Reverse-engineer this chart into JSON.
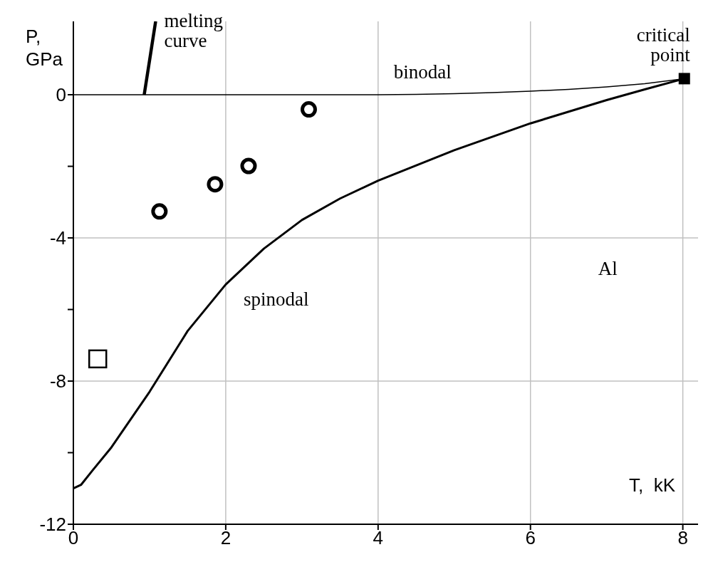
{
  "chart_data": {
    "type": "line",
    "xlabel": "T,  kK",
    "ylabel": "P, GPa",
    "xlim": [
      0,
      8.2
    ],
    "ylim": [
      -12,
      2.05
    ],
    "xticks": [
      0,
      2,
      4,
      6,
      8
    ],
    "yticks": [
      0,
      {
        "value": -2,
        "label": null
      },
      -4,
      {
        "value": -6,
        "label": null
      },
      -8,
      {
        "value": -10,
        "label": null
      },
      -12
    ],
    "grid": true,
    "series": [
      {
        "color": "#000000",
        "marker": "none",
        "x": [
          0,
          1,
          2,
          3,
          4,
          4.5,
          5,
          5.5,
          6,
          6.5,
          7,
          7.5,
          8.02
        ],
        "values": [
          0,
          0,
          0,
          0,
          0,
          0.01,
          0.03,
          0.06,
          0.1,
          0.15,
          0.22,
          0.31,
          0.45
        ]
      },
      {
        "color": "#000000",
        "marker": "none",
        "x": [
          0,
          0.1,
          0.25,
          0.5,
          1,
          1.5,
          2,
          2.5,
          3,
          3.5,
          4,
          5,
          6,
          7,
          7.5,
          8.02
        ],
        "values": [
          -11,
          -10.9,
          -10.5,
          -9.85,
          -8.3,
          -6.6,
          -5.3,
          -4.3,
          -3.5,
          -2.9,
          -2.4,
          -1.55,
          -0.8,
          -0.15,
          0.15,
          0.45
        ]
      },
      {
        "color": "#000000",
        "marker": "none",
        "x": [
          0.93,
          1.08
        ],
        "values": [
          0,
          2.05
        ]
      },
      {
        "type": "scatter",
        "color": "#000000",
        "marker": "circle",
        "x": [
          1.13,
          1.86,
          2.3,
          3.09
        ],
        "values": [
          -3.26,
          -2.5,
          -1.99,
          -0.41
        ]
      },
      {
        "type": "scatter",
        "color": "#000000",
        "marker": "square",
        "x": [
          0.32
        ],
        "values": [
          -7.38
        ]
      },
      {
        "type": "scatter",
        "color": "#000000",
        "marker": "square",
        "x": [
          8.02
        ],
        "values": [
          0.45
        ]
      }
    ],
    "annotations": [
      {
        "text": "melting curve",
        "x": 1.08,
        "y": 2.05
      },
      {
        "text": "binodal",
        "x": 5,
        "y": 0.03
      },
      {
        "text": "critical point",
        "x": 8.02,
        "y": 0.45
      },
      {
        "text": "spinodal",
        "x": 2,
        "y": -5.3
      },
      "Al"
    ]
  }
}
